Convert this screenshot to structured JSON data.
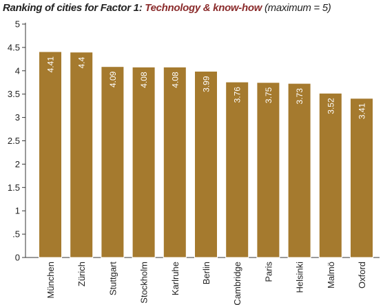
{
  "chart_data": {
    "type": "bar",
    "title": "Ranking of cities for Factor 1:",
    "subtitle": "Technology & know-how",
    "note": "(maximum = 5)",
    "categories": [
      "München",
      "Zürich",
      "Stuttgart",
      "Stockholm",
      "Karlruhe",
      "Berlin",
      "Cambridge",
      "Paris",
      "Helsinki",
      "Malmö",
      "Oxford"
    ],
    "values": [
      4.41,
      4.4,
      4.09,
      4.08,
      4.08,
      3.99,
      3.76,
      3.75,
      3.73,
      3.52,
      3.41
    ],
    "value_labels": [
      "4.41",
      "4.4",
      "4.09",
      "4.08",
      "4.08",
      "3.99",
      "3.76",
      "3.75",
      "3.73",
      "3.52",
      "3.41"
    ],
    "y_ticks": [
      0,
      0.5,
      1,
      1.5,
      2,
      2.5,
      3,
      3.5,
      4,
      4.5,
      5
    ],
    "y_tick_labels": [
      "0",
      ".5",
      "1",
      "1.5",
      "2",
      "2.5",
      "3",
      "3.5",
      "4",
      "4.5",
      "5"
    ],
    "ylim": [
      0,
      5
    ],
    "xlabel": "",
    "ylabel": "",
    "grid": false,
    "legend": "none",
    "bar_color": "#a57a2e",
    "bar_edge_color": "#ffffff",
    "subtitle_color": "#8a2b2b"
  }
}
